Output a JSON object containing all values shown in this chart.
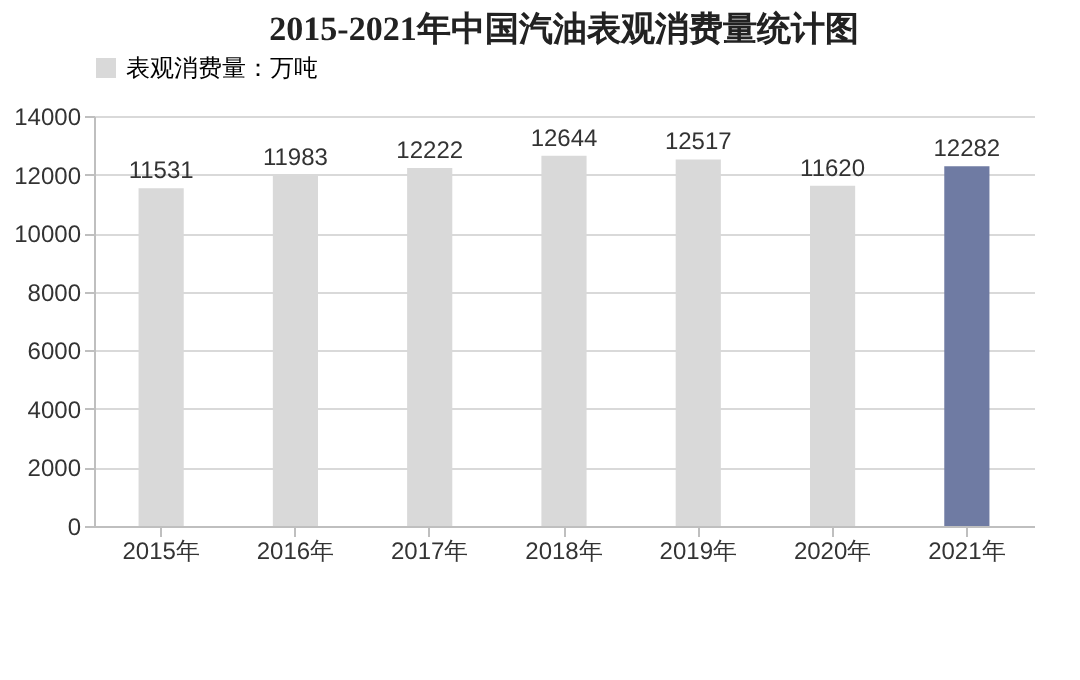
{
  "chart_data": {
    "type": "bar",
    "title": "2015-2021年中国汽油表观消费量统计图",
    "categories": [
      "2015年",
      "2016年",
      "2017年",
      "2018年",
      "2019年",
      "2020年",
      "2021年"
    ],
    "series": [
      {
        "name": "表观消费量：万吨",
        "color": "#d9d9d9",
        "colors": [
          "#d9d9d9",
          "#d9d9d9",
          "#d9d9d9",
          "#d9d9d9",
          "#d9d9d9",
          "#d9d9d9",
          "#6f7ba3"
        ],
        "values": [
          11531,
          11983,
          12222,
          12644,
          12517,
          11620,
          12282
        ]
      }
    ],
    "ylim": [
      0,
      14000
    ],
    "yticks": [
      0,
      2000,
      4000,
      6000,
      8000,
      10000,
      12000,
      14000
    ],
    "grid": "y",
    "legend": "top",
    "data_labels": true
  }
}
